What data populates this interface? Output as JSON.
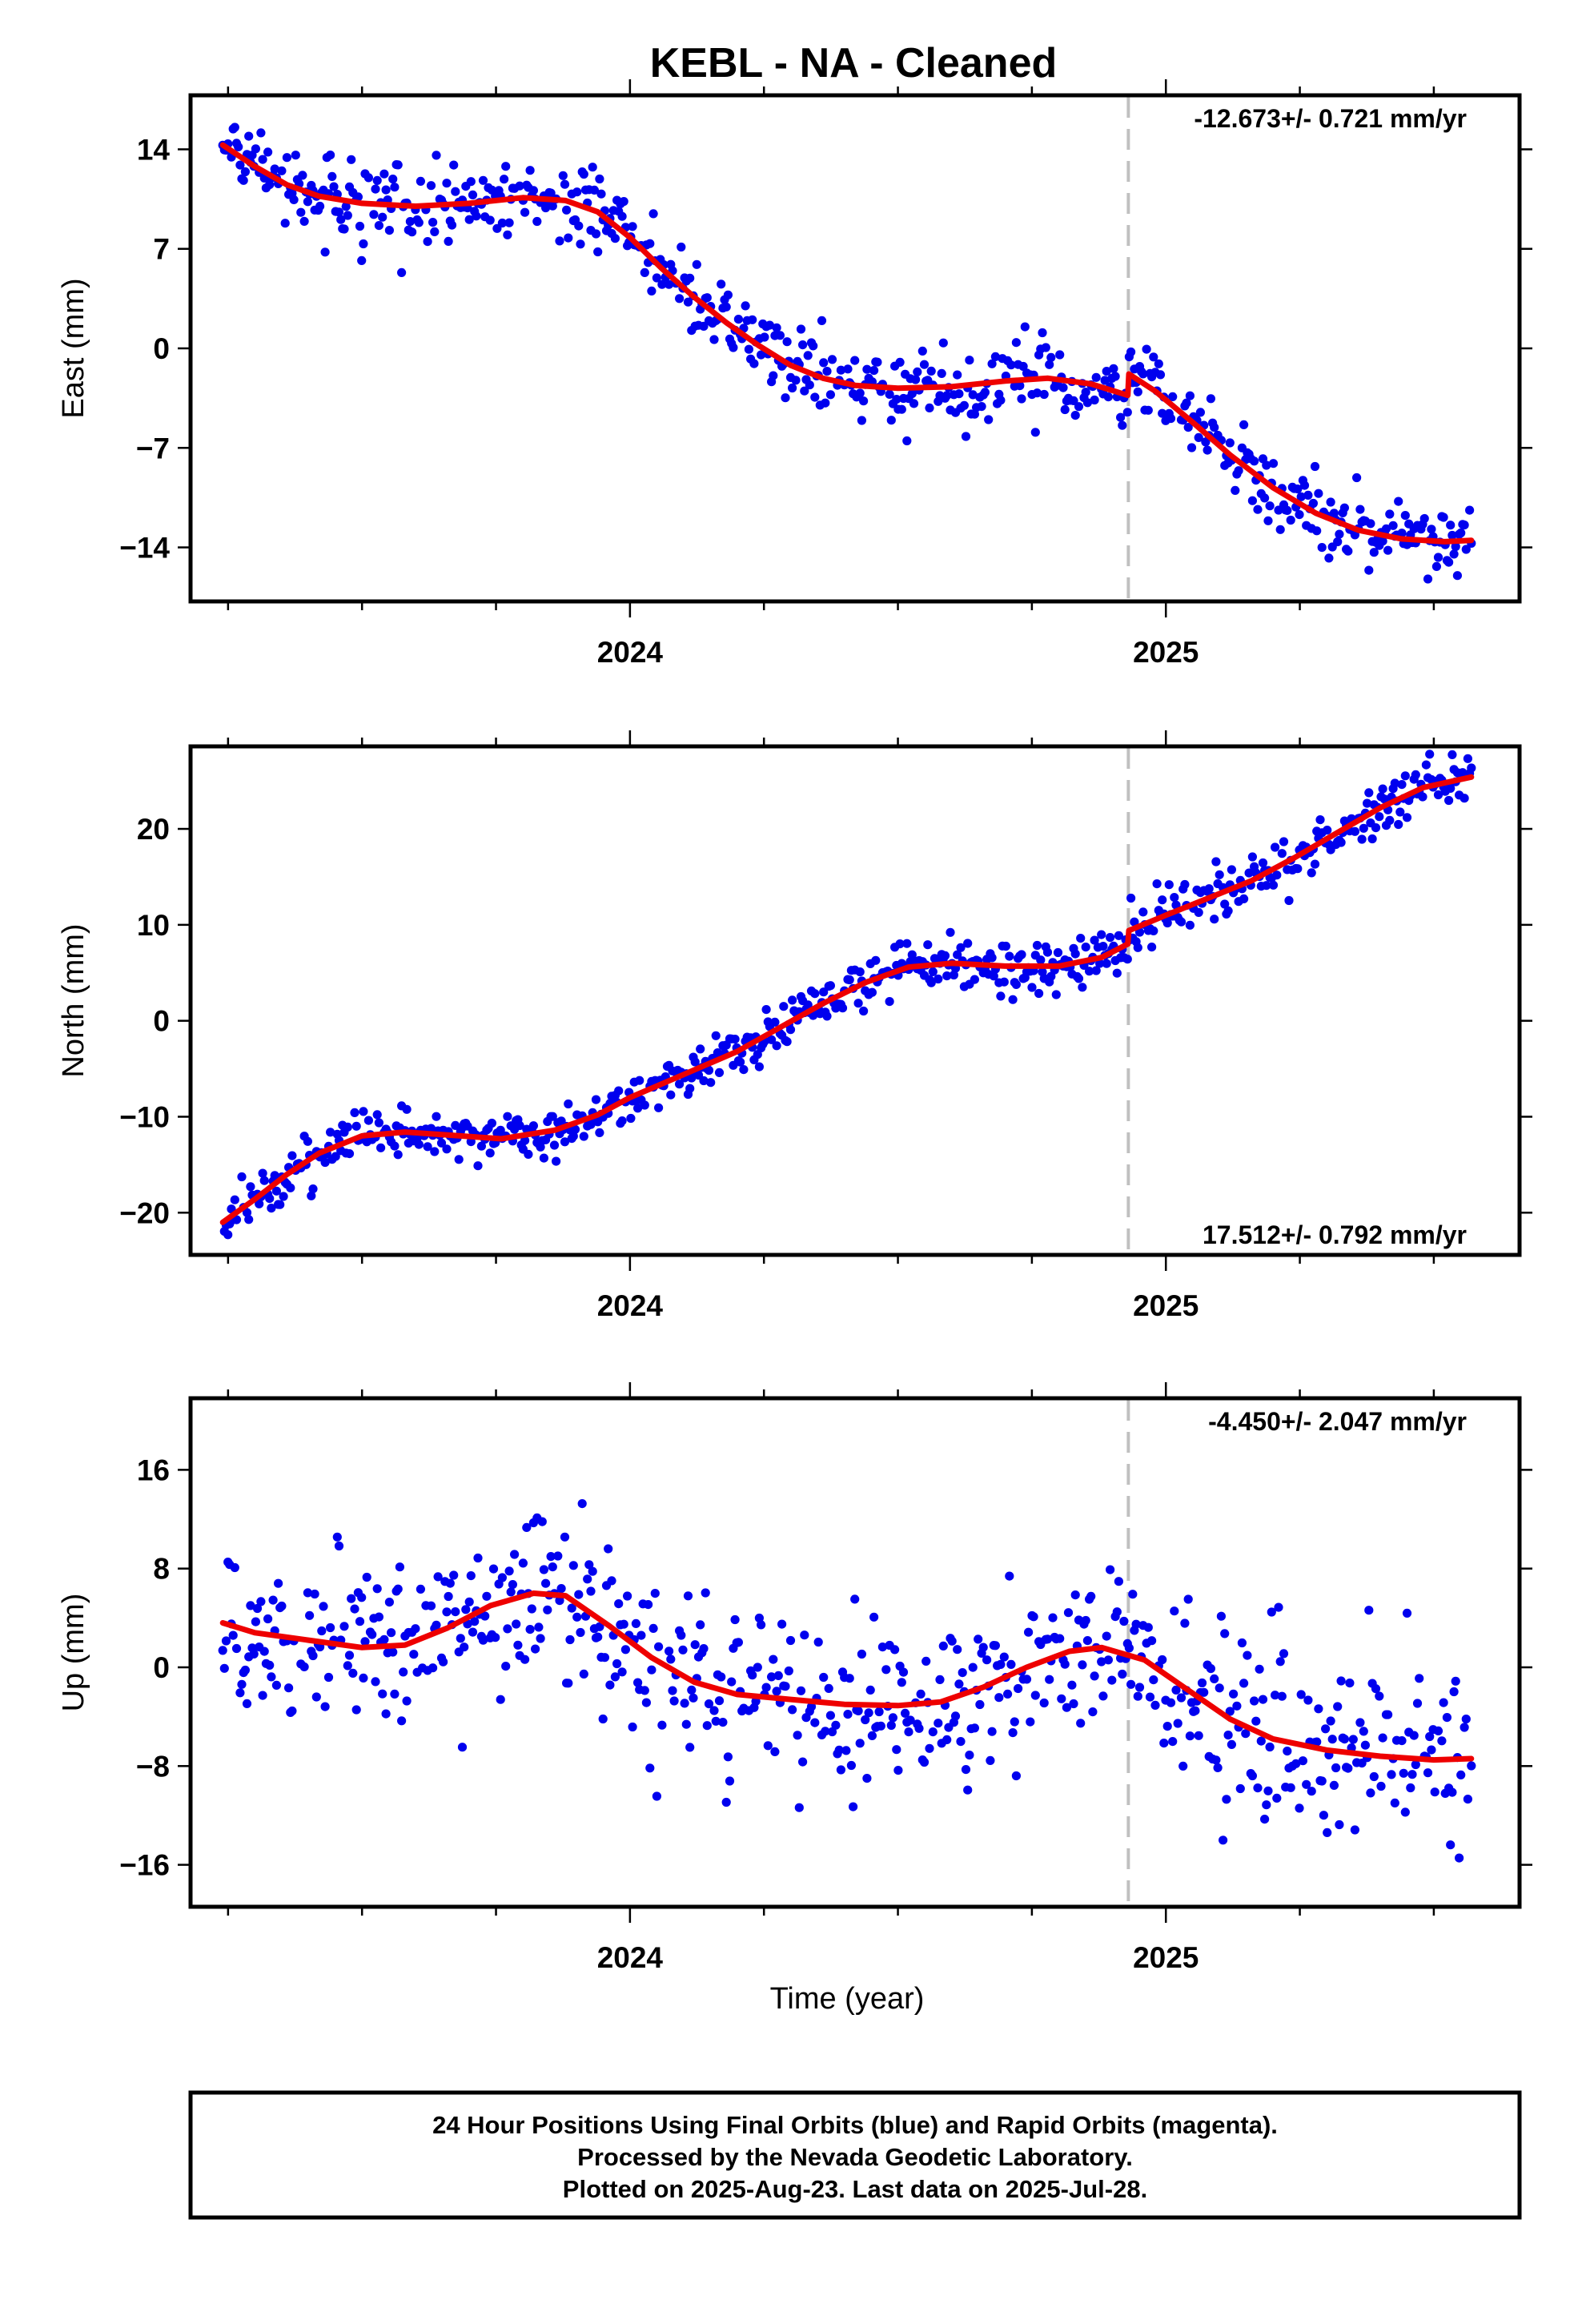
{
  "title": "KEBL  - NA - Cleaned",
  "colors": {
    "final_orbits": "#0000ee",
    "fit": "#ee0000",
    "offset_line": "#c0c0c0"
  },
  "footer": {
    "lines": [
      "24 Hour Positions Using Final Orbits (blue) and Rapid Orbits (magenta).",
      "Processed by the Nevada Geodetic Laboratory.",
      "Plotted on 2025-Aug-23. Last data on 2025-Jul-28."
    ]
  },
  "chart_data": [
    {
      "id": "east",
      "type": "scatter",
      "ylabel": "East (mm)",
      "xlabel": "",
      "xlim": [
        2023.18,
        2025.66
      ],
      "ylim": [
        -17.8,
        17.8
      ],
      "x_ticks": [
        2024,
        2025
      ],
      "x_minor_ticks": [
        2023.25,
        2023.5,
        2023.75,
        2024.25,
        2024.5,
        2024.75,
        2025.25,
        2025.5
      ],
      "y_ticks": [
        14,
        7,
        0,
        -7,
        -14
      ],
      "y_tick_labels": [
        "14",
        "7",
        "0",
        "−7",
        "−14"
      ],
      "rate": "-12.673+/- 0.721 mm/yr",
      "rate_position": "top-right",
      "offset_epoch": 2024.93,
      "grid": false,
      "trend": [
        [
          2023.24,
          14.3
        ],
        [
          2023.3,
          12.8
        ],
        [
          2023.36,
          11.5
        ],
        [
          2023.42,
          10.7
        ],
        [
          2023.5,
          10.2
        ],
        [
          2023.6,
          10.0
        ],
        [
          2023.7,
          10.2
        ],
        [
          2023.8,
          10.6
        ],
        [
          2023.88,
          10.4
        ],
        [
          2023.94,
          9.6
        ],
        [
          2024.0,
          7.8
        ],
        [
          2024.06,
          5.6
        ],
        [
          2024.12,
          3.6
        ],
        [
          2024.18,
          1.8
        ],
        [
          2024.24,
          0.2
        ],
        [
          2024.3,
          -1.2
        ],
        [
          2024.36,
          -2.1
        ],
        [
          2024.42,
          -2.6
        ],
        [
          2024.5,
          -2.8
        ],
        [
          2024.6,
          -2.7
        ],
        [
          2024.7,
          -2.3
        ],
        [
          2024.78,
          -2.1
        ],
        [
          2024.86,
          -2.5
        ],
        [
          2024.929,
          -3.3
        ],
        [
          2024.931,
          -1.8
        ],
        [
          2024.98,
          -3.0
        ],
        [
          2025.05,
          -5.2
        ],
        [
          2025.12,
          -7.5
        ],
        [
          2025.2,
          -9.8
        ],
        [
          2025.28,
          -11.6
        ],
        [
          2025.36,
          -12.8
        ],
        [
          2025.44,
          -13.4
        ],
        [
          2025.52,
          -13.6
        ],
        [
          2025.57,
          -13.5
        ]
      ],
      "noise_sd": 1.35,
      "x_range": [
        2023.24,
        2025.57
      ],
      "n_points": 720
    },
    {
      "id": "north",
      "type": "scatter",
      "ylabel": "North (mm)",
      "xlabel": "",
      "xlim": [
        2023.18,
        2025.66
      ],
      "ylim": [
        -24.4,
        28.6
      ],
      "x_ticks": [
        2024,
        2025
      ],
      "x_minor_ticks": [
        2023.25,
        2023.5,
        2023.75,
        2024.25,
        2024.5,
        2024.75,
        2025.25,
        2025.5
      ],
      "y_ticks": [
        20,
        10,
        0,
        -10,
        -20
      ],
      "y_tick_labels": [
        "20",
        "10",
        "0",
        "−10",
        "−20"
      ],
      "rate": "17.512+/- 0.792 mm/yr",
      "rate_position": "bottom-right",
      "offset_epoch": 2024.93,
      "grid": false,
      "trend": [
        [
          2023.24,
          -21.0
        ],
        [
          2023.3,
          -18.6
        ],
        [
          2023.36,
          -16.0
        ],
        [
          2023.42,
          -13.8
        ],
        [
          2023.5,
          -12.0
        ],
        [
          2023.58,
          -11.6
        ],
        [
          2023.66,
          -11.9
        ],
        [
          2023.76,
          -12.3
        ],
        [
          2023.86,
          -11.4
        ],
        [
          2023.94,
          -9.8
        ],
        [
          2024.0,
          -8.0
        ],
        [
          2024.1,
          -5.6
        ],
        [
          2024.2,
          -3.2
        ],
        [
          2024.28,
          -0.7
        ],
        [
          2024.36,
          1.8
        ],
        [
          2024.44,
          4.0
        ],
        [
          2024.52,
          5.6
        ],
        [
          2024.6,
          6.0
        ],
        [
          2024.7,
          5.7
        ],
        [
          2024.8,
          5.7
        ],
        [
          2024.88,
          6.6
        ],
        [
          2024.929,
          8.0
        ],
        [
          2024.931,
          9.4
        ],
        [
          2025.0,
          11.0
        ],
        [
          2025.08,
          12.8
        ],
        [
          2025.16,
          14.6
        ],
        [
          2025.24,
          17.0
        ],
        [
          2025.32,
          19.6
        ],
        [
          2025.4,
          22.2
        ],
        [
          2025.48,
          24.3
        ],
        [
          2025.57,
          25.4
        ]
      ],
      "noise_sd": 1.3,
      "x_range": [
        2023.24,
        2025.57
      ],
      "n_points": 720
    },
    {
      "id": "up",
      "type": "scatter",
      "ylabel": "Up (mm)",
      "xlabel": "Time (year)",
      "xlim": [
        2023.18,
        2025.66
      ],
      "ylim": [
        -19.4,
        21.8
      ],
      "x_ticks": [
        2024,
        2025
      ],
      "x_minor_ticks": [
        2023.25,
        2023.5,
        2023.75,
        2024.25,
        2024.5,
        2024.75,
        2025.25,
        2025.5
      ],
      "y_ticks": [
        16,
        8,
        0,
        -8,
        -16
      ],
      "y_tick_labels": [
        "16",
        "8",
        "0",
        "−8",
        "−16"
      ],
      "rate": "-4.450+/- 2.047 mm/yr",
      "rate_position": "top-right",
      "offset_epoch": 2024.93,
      "grid": false,
      "trend": [
        [
          2023.24,
          3.6
        ],
        [
          2023.3,
          2.8
        ],
        [
          2023.4,
          2.2
        ],
        [
          2023.5,
          1.6
        ],
        [
          2023.58,
          1.8
        ],
        [
          2023.66,
          3.2
        ],
        [
          2023.74,
          5.0
        ],
        [
          2023.82,
          6.0
        ],
        [
          2023.88,
          5.8
        ],
        [
          2023.96,
          3.4
        ],
        [
          2024.04,
          0.8
        ],
        [
          2024.12,
          -1.2
        ],
        [
          2024.2,
          -2.2
        ],
        [
          2024.3,
          -2.6
        ],
        [
          2024.4,
          -3.0
        ],
        [
          2024.5,
          -3.1
        ],
        [
          2024.58,
          -2.8
        ],
        [
          2024.66,
          -1.6
        ],
        [
          2024.74,
          0.0
        ],
        [
          2024.82,
          1.3
        ],
        [
          2024.88,
          1.6
        ],
        [
          2024.96,
          0.6
        ],
        [
          2025.04,
          -1.8
        ],
        [
          2025.12,
          -4.2
        ],
        [
          2025.2,
          -5.8
        ],
        [
          2025.3,
          -6.7
        ],
        [
          2025.4,
          -7.2
        ],
        [
          2025.5,
          -7.5
        ],
        [
          2025.57,
          -7.4
        ]
      ],
      "noise_sd": 3.6,
      "x_range": [
        2023.24,
        2025.57
      ],
      "n_points": 720
    }
  ]
}
